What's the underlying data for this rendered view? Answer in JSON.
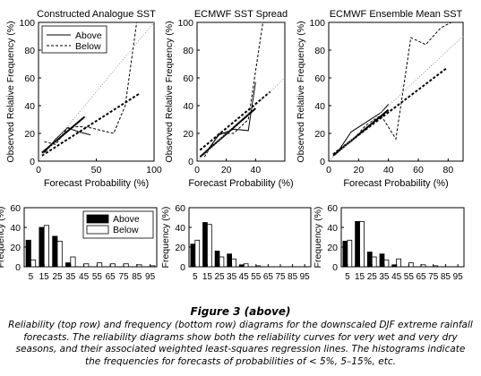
{
  "chart_data": [
    {
      "type": "line",
      "title": "Constructed Analogue SST",
      "xlabel": "Forecast Probability (%)",
      "ylabel": "Observed Relative Frequency (%)",
      "xlim": [
        0,
        100
      ],
      "ylim": [
        0,
        100
      ],
      "xticks": [
        "0",
        "50",
        "100"
      ],
      "yticks": [
        "0",
        "20",
        "40",
        "60",
        "80",
        "100"
      ],
      "grid": false,
      "legend": {
        "placement": "top-left",
        "entries": [
          "Above",
          "Below"
        ]
      },
      "series": [
        {
          "name": "Above",
          "style": "solid",
          "x": [
            5,
            15,
            25,
            35,
            45
          ],
          "y": [
            6,
            16,
            24,
            21,
            19
          ]
        },
        {
          "name": "Below",
          "style": "dashed",
          "x": [
            5,
            15,
            25,
            35,
            45,
            55,
            65,
            75,
            85
          ],
          "y": [
            14,
            12,
            24,
            25,
            24,
            22,
            20,
            40,
            100
          ]
        },
        {
          "name": "Above regression",
          "style": "solid-thick",
          "x": [
            3,
            40
          ],
          "y": [
            6,
            32
          ]
        },
        {
          "name": "Below regression",
          "style": "dashed-thick",
          "x": [
            3,
            88
          ],
          "y": [
            4,
            49
          ]
        },
        {
          "name": "Diagonal",
          "style": "dotted",
          "x": [
            0,
            100
          ],
          "y": [
            0,
            100
          ]
        }
      ]
    },
    {
      "type": "line",
      "title": "ECMWF SST Spread",
      "xlabel": "Forecast Probability (%)",
      "ylabel": "Observed Relative Frequency (%)",
      "xlim": [
        0,
        60
      ],
      "ylim": [
        0,
        100
      ],
      "xticks": [
        "0",
        "20",
        "40"
      ],
      "yticks": [
        "0",
        "20",
        "40",
        "60",
        "80",
        "100"
      ],
      "grid": false,
      "series": [
        {
          "name": "Above",
          "style": "solid",
          "x": [
            5,
            15,
            25,
            35,
            40
          ],
          "y": [
            5,
            19,
            23,
            22,
            57
          ]
        },
        {
          "name": "Below",
          "style": "dashed",
          "x": [
            5,
            15,
            25,
            35,
            45
          ],
          "y": [
            3,
            20,
            20,
            30,
            100
          ]
        },
        {
          "name": "Above regression",
          "style": "solid-thick",
          "x": [
            2,
            40
          ],
          "y": [
            3,
            38
          ]
        },
        {
          "name": "Below regression",
          "style": "dashed-thick",
          "x": [
            2,
            50
          ],
          "y": [
            8,
            50
          ]
        },
        {
          "name": "Diagonal",
          "style": "dotted",
          "x": [
            0,
            60
          ],
          "y": [
            0,
            60
          ]
        }
      ]
    },
    {
      "type": "line",
      "title": "ECMWF Ensemble Mean SST",
      "xlabel": "Forecast Probability (%)",
      "ylabel": "Observed Relative Frequency (%)",
      "xlim": [
        0,
        90
      ],
      "ylim": [
        0,
        100
      ],
      "xticks": [
        "0",
        "20",
        "40",
        "60",
        "80"
      ],
      "yticks": [
        "0",
        "20",
        "40",
        "60",
        "80",
        "100"
      ],
      "grid": false,
      "series": [
        {
          "name": "Above",
          "style": "solid",
          "x": [
            5,
            15,
            25,
            35,
            40
          ],
          "y": [
            5,
            21,
            28,
            35,
            41
          ]
        },
        {
          "name": "Below",
          "style": "dashed",
          "x": [
            5,
            15,
            25,
            35,
            45,
            55,
            65,
            75,
            82
          ],
          "y": [
            7,
            14,
            26,
            33,
            16,
            89,
            84,
            96,
            100
          ]
        },
        {
          "name": "Above regression",
          "style": "solid-thick",
          "x": [
            3,
            40
          ],
          "y": [
            4,
            37
          ]
        },
        {
          "name": "Below regression",
          "style": "dashed-thick",
          "x": [
            3,
            79
          ],
          "y": [
            5,
            67
          ]
        },
        {
          "name": "Diagonal",
          "style": "dotted",
          "x": [
            0,
            90
          ],
          "y": [
            0,
            90
          ]
        }
      ]
    },
    {
      "type": "bar",
      "xlabel": "",
      "ylabel": "Frequency (%)",
      "ylim": [
        0,
        60
      ],
      "yticks": [
        "0",
        "20",
        "40",
        "60"
      ],
      "categories": [
        "5",
        "15",
        "25",
        "35",
        "45",
        "55",
        "65",
        "75",
        "85",
        "95"
      ],
      "legend": {
        "placement": "top-right",
        "entries": [
          "Above",
          "Below"
        ]
      },
      "series": [
        {
          "name": "Above",
          "color": "#000000",
          "values": [
            27,
            40,
            31,
            4,
            0,
            0,
            0,
            0,
            0,
            0
          ]
        },
        {
          "name": "Below",
          "color": "#ffffff",
          "values": [
            7,
            42,
            26,
            10,
            3,
            4,
            3,
            3,
            2,
            1
          ]
        }
      ]
    },
    {
      "type": "bar",
      "xlabel": "",
      "ylabel": "Frequency (%)",
      "ylim": [
        0,
        60
      ],
      "yticks": [
        "0",
        "20",
        "40",
        "60"
      ],
      "categories": [
        "5",
        "15",
        "25",
        "35",
        "45",
        "55",
        "65",
        "75",
        "85",
        "95"
      ],
      "series": [
        {
          "name": "Above",
          "color": "#000000",
          "values": [
            23,
            45,
            16,
            13,
            2,
            0,
            0,
            0,
            0,
            0
          ]
        },
        {
          "name": "Below",
          "color": "#ffffff",
          "values": [
            27,
            43,
            10,
            8,
            3,
            1,
            0,
            0,
            0,
            0
          ]
        }
      ]
    },
    {
      "type": "bar",
      "xlabel": "",
      "ylabel": "Frequency (%)",
      "ylim": [
        0,
        60
      ],
      "yticks": [
        "0",
        "20",
        "40",
        "60"
      ],
      "categories": [
        "5",
        "15",
        "25",
        "35",
        "45",
        "55",
        "65",
        "75",
        "85",
        "95"
      ],
      "series": [
        {
          "name": "Above",
          "color": "#000000",
          "values": [
            26,
            46,
            15,
            13,
            2,
            0,
            0,
            0,
            0,
            0
          ]
        },
        {
          "name": "Below",
          "color": "#ffffff",
          "values": [
            27,
            46,
            10,
            7,
            8,
            4,
            2,
            1,
            0,
            0
          ]
        }
      ]
    }
  ],
  "caption": {
    "title": "Figure 3 (above)",
    "text": "Reliability (top row) and frequency (bottom row) diagrams for the downscaled DJF extreme rainfall forecasts. The reliability diagrams show both the reliability curves for very wet and very dry seasons, and their associated weighted least-squares regression lines. The histograms indicate the frequencies for forecasts of probabilities of < 5%, 5–15%, etc."
  }
}
